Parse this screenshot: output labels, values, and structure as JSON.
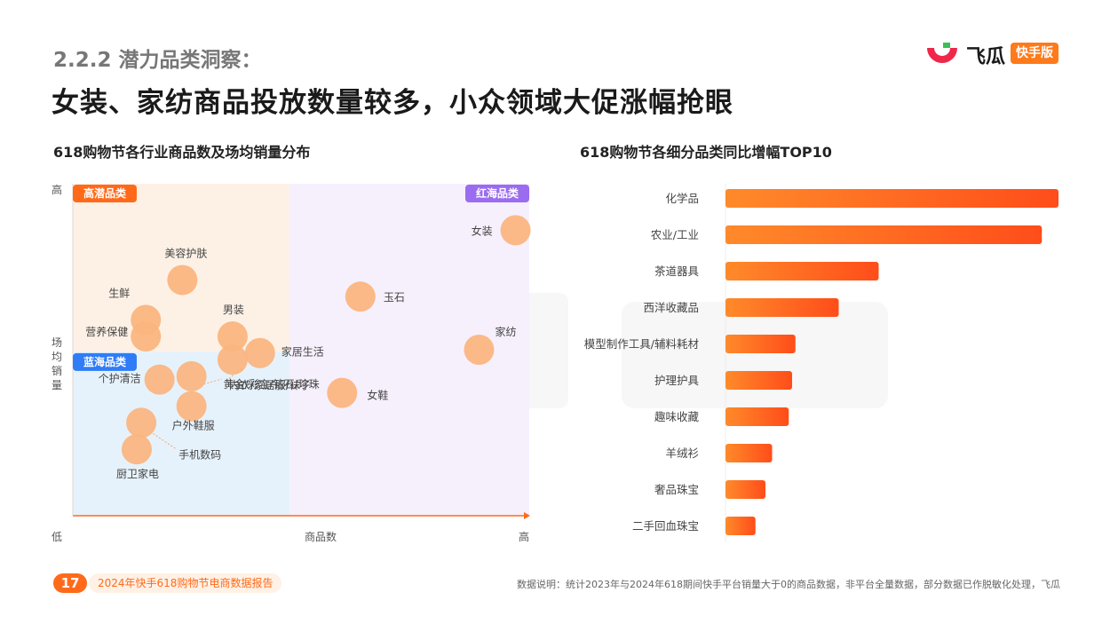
{
  "header": {
    "section": "2.2.2 潜力品类洞察：",
    "headline": "女装、家纺商品投放数量较多，小众领域大促涨幅抢眼"
  },
  "logo": {
    "text": "飞瓜",
    "badge": "快手版"
  },
  "colors": {
    "accent": "#ff6a1a",
    "bubble": "#fbb47e",
    "high_potential": "#ff6a1a",
    "red_sea": "#9b6cf0",
    "blue_sea": "#2f7cf6",
    "quad_high_potential_bg": "#fdf1e6",
    "quad_red_sea_bg": "#f6f0fd",
    "quad_blue_sea_bg": "#e6f2fb"
  },
  "chart_data": [
    {
      "type": "scatter",
      "title": "618购物节各行业商品数及场均销量分布",
      "xlabel": "商品数",
      "ylabel": "场均销量",
      "x_low": "低",
      "x_high": "高",
      "y_low": "低",
      "y_high": "高",
      "xlim": [
        0,
        100
      ],
      "ylim": [
        0,
        100
      ],
      "quadrants": {
        "high_potential": "高潜品类",
        "red_sea": "红海品类",
        "blue_sea": "蓝海品类"
      },
      "points": [
        {
          "label": "女装",
          "x": 97,
          "y": 86
        },
        {
          "label": "玉石",
          "x": 63,
          "y": 66
        },
        {
          "label": "家纺",
          "x": 89,
          "y": 50
        },
        {
          "label": "女鞋",
          "x": 59,
          "y": 37
        },
        {
          "label": "美容护肤",
          "x": 24,
          "y": 71
        },
        {
          "label": "生鲜",
          "x": 16,
          "y": 59
        },
        {
          "label": "营养保健",
          "x": 16,
          "y": 54
        },
        {
          "label": "男装",
          "x": 35,
          "y": 54
        },
        {
          "label": "家居生活",
          "x": 41,
          "y": 49
        },
        {
          "label": "内衣/家居服/袜子",
          "x": 35,
          "y": 47
        },
        {
          "label": "个护清洁",
          "x": 19,
          "y": 41
        },
        {
          "label": "黄金/彩宝/钻石/珍珠",
          "x": 26,
          "y": 42
        },
        {
          "label": "户外鞋服",
          "x": 26,
          "y": 33
        },
        {
          "label": "手机数码",
          "x": 15,
          "y": 28
        },
        {
          "label": "厨卫家电",
          "x": 14,
          "y": 20
        }
      ]
    },
    {
      "type": "bar",
      "title": "618购物节各细分品类同比增幅TOP10",
      "orientation": "horizontal",
      "categories": [
        "化学品",
        "农业/工业",
        "茶道器具",
        "西洋收藏品",
        "模型制作工具/辅料耗材",
        "护理护具",
        "趣味收藏",
        "羊绒衫",
        "奢品珠宝",
        "二手回血珠宝"
      ],
      "values": [
        100,
        95,
        46,
        34,
        21,
        20,
        19,
        14,
        12,
        9
      ],
      "xlim": [
        0,
        100
      ]
    }
  ],
  "footer": {
    "page_number": "17",
    "report_title": "2024年快手618购物节电商数据报告",
    "note": "数据说明：统计2023年与2024年618期间快手平台销量大于0的商品数据，非平台全量数据，部分数据已作脱敏化处理，飞瓜"
  }
}
